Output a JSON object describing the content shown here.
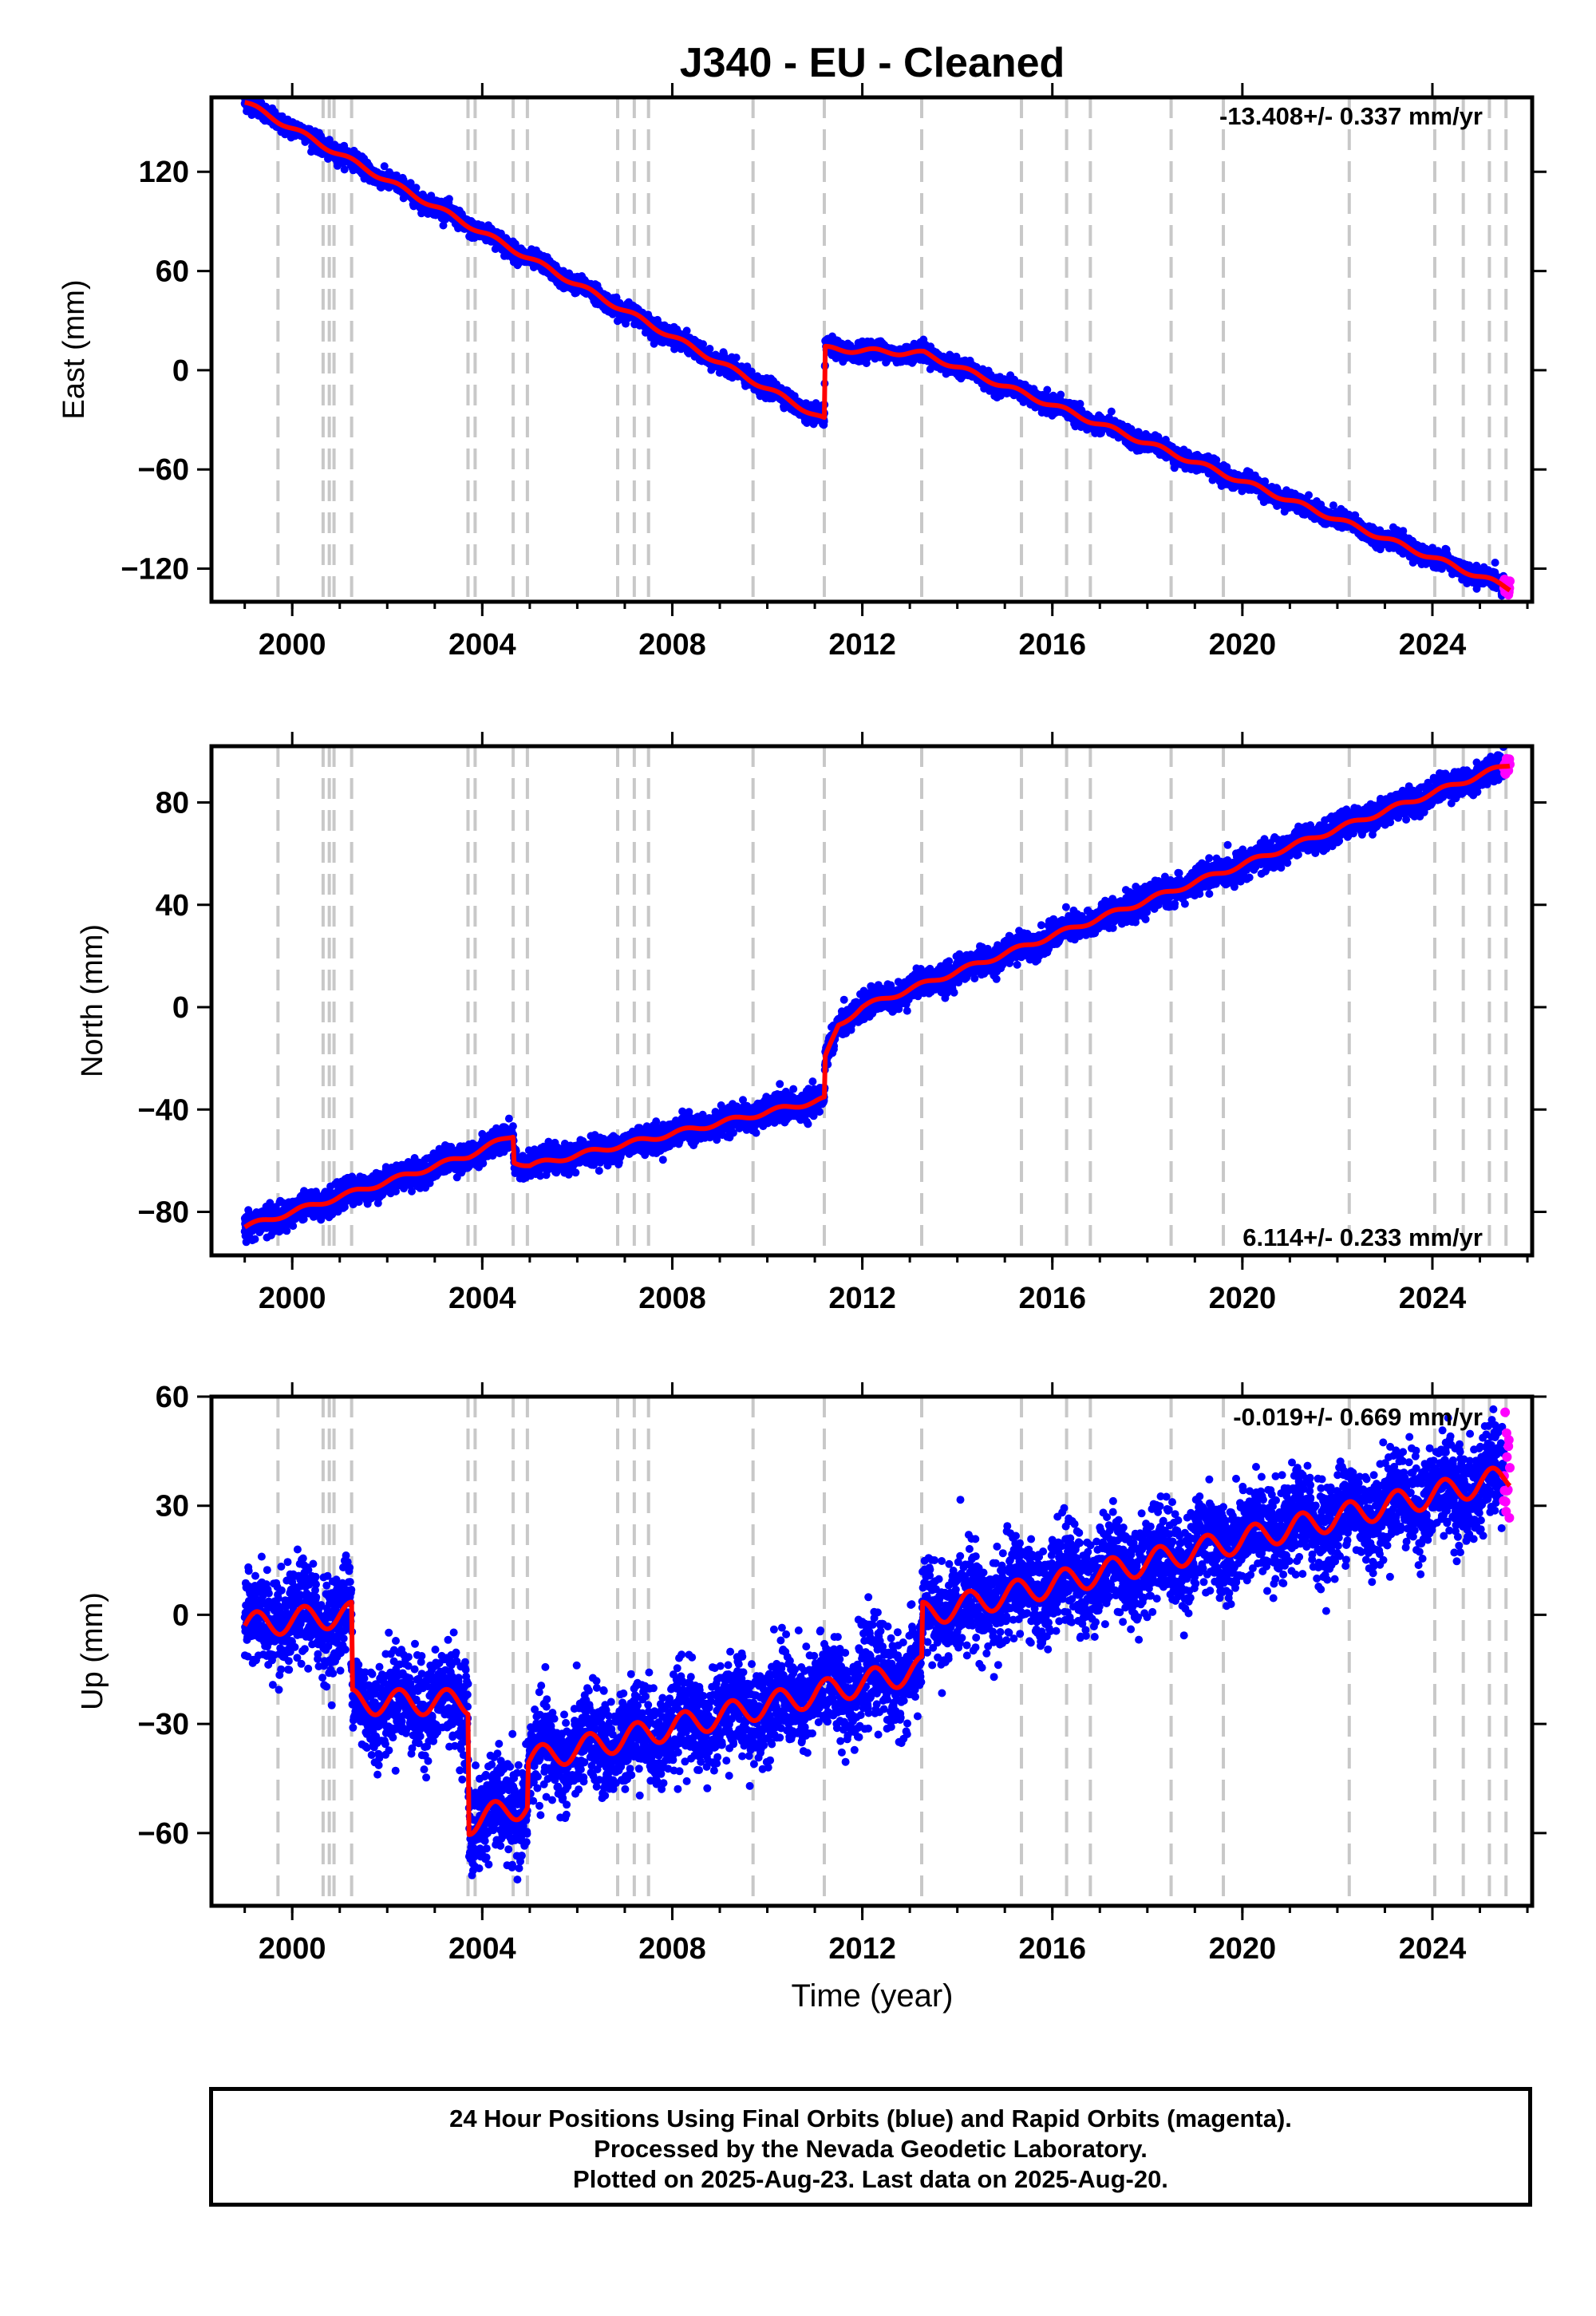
{
  "title": "J340  - EU - Cleaned",
  "x_axis_label": "Time (year)",
  "footer": {
    "line1": "24 Hour Positions Using Final Orbits (blue) and Rapid Orbits (magenta).",
    "line2": "Processed by the Nevada Geodetic Laboratory.",
    "line3": "Plotted on 2025-Aug-23. Last data on 2025-Aug-20."
  },
  "colors": {
    "final_orbits": "#0000ff",
    "rapid_orbits": "#ff00ff",
    "model": "#ff0000",
    "event_lines": "#c8c8c8"
  },
  "event_lines_years": [
    1999.7,
    2000.65,
    2000.78,
    2000.88,
    2001.25,
    2003.7,
    2003.85,
    2004.65,
    2004.95,
    2006.85,
    2007.2,
    2007.5,
    2009.7,
    2011.2,
    2013.25,
    2015.35,
    2016.3,
    2016.8,
    2018.5,
    2019.6,
    2022.25,
    2024.05,
    2024.65,
    2025.2,
    2025.55
  ],
  "chart_data": [
    {
      "type": "scatter",
      "ylabel": "East (mm)",
      "rate_label": "-13.408+/- 0.337 mm/yr",
      "rate_position": "top-right",
      "xlim": [
        1998.3,
        2026.1
      ],
      "ylim": [
        -140,
        165
      ],
      "x_ticks": [
        2000,
        2004,
        2008,
        2012,
        2016,
        2020,
        2024
      ],
      "x_tick_labels": [
        "2000",
        "2004",
        "2008",
        "2012",
        "2016",
        "2020",
        "2024"
      ],
      "y_ticks": [
        -120,
        -60,
        0,
        60,
        120
      ],
      "y_tick_labels": [
        "−120",
        "−60",
        "0",
        "60",
        "120"
      ],
      "series": [
        {
          "kind": "final_orbits_points",
          "start": 1999.0,
          "end": 2025.5,
          "noise": 2.5,
          "step": 0.004
        },
        {
          "kind": "rapid_orbits_points",
          "start": 2025.5,
          "end": 2025.63,
          "noise": 2.5,
          "step": 0.01
        },
        {
          "kind": "model",
          "seasonal_amplitude": 1.5
        }
      ],
      "trend_knots": [
        [
          1999.0,
          162
        ],
        [
          2011.2,
          -30
        ],
        [
          2011.22,
          13
        ],
        [
          2013.3,
          10
        ],
        [
          2025.63,
          -132
        ]
      ]
    },
    {
      "type": "scatter",
      "ylabel": "North (mm)",
      "rate_label": "6.114+/- 0.233 mm/yr",
      "rate_position": "bottom-right",
      "xlim": [
        1998.3,
        2026.1
      ],
      "ylim": [
        -97,
        102
      ],
      "x_ticks": [
        2000,
        2004,
        2008,
        2012,
        2016,
        2020,
        2024
      ],
      "x_tick_labels": [
        "2000",
        "2004",
        "2008",
        "2012",
        "2016",
        "2020",
        "2024"
      ],
      "y_ticks": [
        -80,
        -40,
        0,
        40,
        80
      ],
      "y_tick_labels": [
        "−80",
        "−40",
        "0",
        "40",
        "80"
      ],
      "series": [
        {
          "kind": "final_orbits_points",
          "start": 1999.0,
          "end": 2025.5,
          "noise": 2.5,
          "step": 0.004
        },
        {
          "kind": "rapid_orbits_points",
          "start": 2025.5,
          "end": 2025.63,
          "noise": 2.5,
          "step": 0.01
        },
        {
          "kind": "model",
          "seasonal_amplitude": 1.0
        }
      ],
      "trend_knots": [
        [
          1999.0,
          -86
        ],
        [
          2003.7,
          -58
        ],
        [
          2004.65,
          -50
        ],
        [
          2004.67,
          -60
        ],
        [
          2005.0,
          -62
        ],
        [
          2011.2,
          -36
        ],
        [
          2011.22,
          -20
        ],
        [
          2011.5,
          -7
        ],
        [
          2012.0,
          0
        ],
        [
          2025.63,
          95
        ]
      ]
    },
    {
      "type": "scatter",
      "ylabel": "Up (mm)",
      "rate_label": "-0.019+/- 0.669 mm/yr",
      "rate_position": "top-right",
      "xlim": [
        1998.3,
        2026.1
      ],
      "ylim": [
        -80,
        60
      ],
      "x_ticks": [
        2000,
        2004,
        2008,
        2012,
        2016,
        2020,
        2024
      ],
      "x_tick_labels": [
        "2000",
        "2004",
        "2008",
        "2012",
        "2016",
        "2020",
        "2024"
      ],
      "y_ticks": [
        -60,
        -30,
        0,
        30,
        60
      ],
      "y_tick_labels": [
        "−60",
        "−30",
        "0",
        "30",
        "60"
      ],
      "series": [
        {
          "kind": "final_orbits_points",
          "start": 1999.0,
          "end": 2025.5,
          "noise": 6.5,
          "step": 0.004
        },
        {
          "kind": "rapid_orbits_points",
          "start": 2025.5,
          "end": 2025.63,
          "noise": 9,
          "step": 0.01
        },
        {
          "kind": "model",
          "seasonal_amplitude": 3.5
        }
      ],
      "trend_knots": [
        [
          1999.0,
          -3
        ],
        [
          2001.0,
          0
        ],
        [
          2001.25,
          0
        ],
        [
          2001.27,
          -24
        ],
        [
          2003.7,
          -24
        ],
        [
          2003.72,
          -57
        ],
        [
          2004.95,
          -52
        ],
        [
          2004.97,
          -40
        ],
        [
          2013.25,
          -15
        ],
        [
          2013.27,
          0
        ],
        [
          2025.63,
          38
        ]
      ]
    }
  ]
}
